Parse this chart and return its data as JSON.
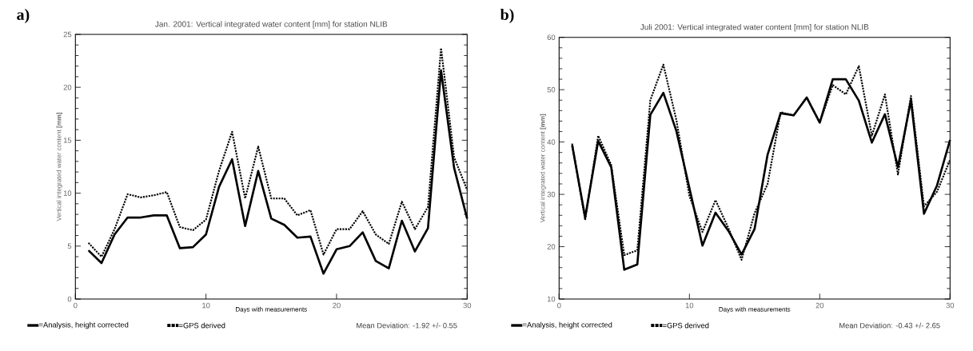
{
  "chart_data": [
    {
      "type": "line",
      "title": "Jan. 2001: Vertical integrated water content [mm] for station NLIB",
      "xlabel": "Days with measurements",
      "ylabel": "Vertical integrated water content **[mm]**",
      "x": [
        1,
        2,
        3,
        4,
        5,
        6,
        7,
        8,
        9,
        10,
        11,
        12,
        13,
        14,
        15,
        16,
        17,
        18,
        19,
        20,
        21,
        22,
        23,
        24,
        25,
        26,
        27,
        28,
        29,
        30
      ],
      "series": [
        {
          "name": "=Analysis, height corrected",
          "color": "#000000",
          "line_style": "solid",
          "values": [
            4.6,
            3.4,
            6.1,
            7.7,
            7.7,
            7.9,
            7.9,
            4.8,
            4.9,
            6.1,
            10.6,
            13.2,
            6.9,
            12.1,
            7.6,
            7.0,
            5.8,
            5.9,
            2.4,
            4.7,
            5.0,
            6.3,
            3.6,
            2.9,
            7.4,
            4.5,
            6.7,
            21.6,
            12.4,
            7.6
          ]
        },
        {
          "name": "=GPS derived",
          "color": "#000000",
          "line_style": "dotted",
          "values": [
            5.3,
            4.0,
            6.6,
            9.9,
            9.6,
            9.8,
            10.1,
            6.8,
            6.5,
            7.5,
            12.1,
            15.8,
            9.5,
            14.4,
            9.5,
            9.5,
            7.9,
            8.4,
            4.2,
            6.6,
            6.6,
            8.3,
            6.1,
            5.2,
            9.2,
            6.6,
            8.7,
            23.7,
            13.4,
            10.3
          ]
        }
      ],
      "xlim": [
        0,
        30
      ],
      "xticks": [
        0,
        10,
        20,
        30
      ],
      "ylim": [
        0,
        25
      ],
      "yticks": [
        0,
        5,
        10,
        15,
        20,
        25
      ],
      "legend": "bottom left",
      "annotations": [
        "a)",
        "Mean Deviation:   -1.92  +/-     0.55"
      ]
    },
    {
      "type": "line",
      "title": "Juli 2001: Vertical integrated water content [mm] for station NLIB",
      "xlabel": "Days with measurements",
      "ylabel": "Vertical integrated water content **[mm]**",
      "x": [
        1,
        2,
        3,
        4,
        5,
        6,
        7,
        8,
        9,
        10,
        11,
        12,
        13,
        14,
        15,
        16,
        17,
        18,
        19,
        20,
        21,
        22,
        23,
        24,
        25,
        26,
        27,
        28,
        29,
        30
      ],
      "series": [
        {
          "name": "=Analysis, height corrected",
          "color": "#000000",
          "line_style": "solid",
          "values": [
            39.4,
            25.6,
            40.2,
            35.2,
            15.6,
            16.6,
            45.2,
            49.4,
            42.1,
            31.2,
            20.2,
            26.5,
            23.0,
            18.5,
            23.4,
            37.6,
            45.5,
            45.1,
            48.5,
            43.7,
            52.0,
            52.0,
            47.9,
            39.9,
            45.3,
            35.2,
            48.0,
            26.3,
            31.7,
            40.4
          ]
        },
        {
          "name": "=GPS derived",
          "color": "#000000",
          "line_style": "dotted",
          "values": [
            39.7,
            25.1,
            41.2,
            35.6,
            18.4,
            19.3,
            48.0,
            54.8,
            44.2,
            29.7,
            22.8,
            28.9,
            23.5,
            17.5,
            26.4,
            32.0,
            45.7,
            45.1,
            48.5,
            43.7,
            50.9,
            49.1,
            54.5,
            41.2,
            49.1,
            33.8,
            48.8,
            27.7,
            30.5,
            36.6
          ]
        }
      ],
      "xlim": [
        0,
        30
      ],
      "xticks": [
        0,
        10,
        20,
        30
      ],
      "ylim": [
        10,
        60
      ],
      "yticks": [
        10,
        20,
        30,
        40,
        50,
        60
      ],
      "legend": "bottom left",
      "annotations": [
        "b)",
        "Mean Deviation:   -0.43  +/-     2.65"
      ]
    }
  ]
}
